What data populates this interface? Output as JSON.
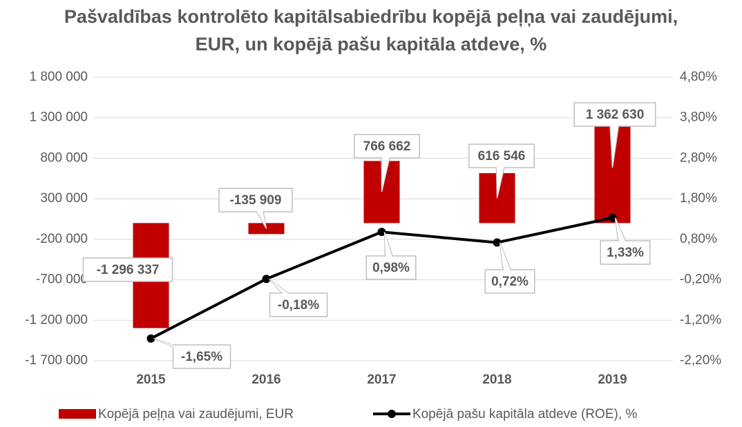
{
  "chart_data": {
    "type": "bar",
    "title": "Pašvaldības kontrolēto kapitālsabiedrību kopējā peļņa vai zaudējumi, EUR, un kopējā pašu kapitāla atdeve, %",
    "categories": [
      "2015",
      "2016",
      "2017",
      "2018",
      "2019"
    ],
    "series": [
      {
        "name": "Kopējā peļņa vai zaudējumi, EUR",
        "type": "bar",
        "color": "#c00000",
        "values": [
          -1296337,
          -135909,
          766662,
          616546,
          1362630
        ],
        "value_labels": [
          "-1 296 337",
          "-135 909",
          "766 662",
          "616 546",
          "1 362 630"
        ]
      },
      {
        "name": "Kopējā pašu kapitāla atdeve (ROE), %",
        "type": "line",
        "axis": "y2",
        "color": "#000000",
        "values": [
          -1.65,
          -0.18,
          0.98,
          0.72,
          1.33
        ],
        "value_labels": [
          "-1,65%",
          "-0,18%",
          "0,98%",
          "0,72%",
          "1,33%"
        ]
      }
    ],
    "ylim": [
      -1700000,
      1800000
    ],
    "yticks": [
      {
        "value": -1700000,
        "label": "-1 700 000"
      },
      {
        "value": -1200000,
        "label": "-1 200 000"
      },
      {
        "value": -700000,
        "label": "-700 000"
      },
      {
        "value": -200000,
        "label": "-200 000"
      },
      {
        "value": 300000,
        "label": "300 000"
      },
      {
        "value": 800000,
        "label": "800 000"
      },
      {
        "value": 1300000,
        "label": "1 300 000"
      },
      {
        "value": 1800000,
        "label": "1 800 000"
      }
    ],
    "y2lim": [
      -2.2,
      4.8
    ],
    "y2ticks": [
      {
        "value": -2.2,
        "label": "-2,20%"
      },
      {
        "value": -1.2,
        "label": "-1,20%"
      },
      {
        "value": -0.2,
        "label": "-0,20%"
      },
      {
        "value": 0.8,
        "label": "0,80%"
      },
      {
        "value": 1.8,
        "label": "1,80%"
      },
      {
        "value": 2.8,
        "label": "2,80%"
      },
      {
        "value": 3.8,
        "label": "3,80%"
      },
      {
        "value": 4.8,
        "label": "4,80%"
      }
    ],
    "grid": true,
    "legend": "bottom"
  }
}
